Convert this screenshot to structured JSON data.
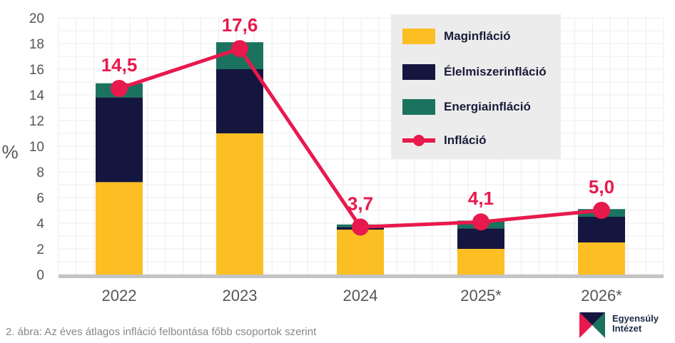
{
  "chart_data": {
    "type": "bar",
    "stacked": true,
    "categories": [
      "2022",
      "2023",
      "2024",
      "2025*",
      "2026*"
    ],
    "series": [
      {
        "name": "Maginfláció",
        "color": "#fbbf24",
        "values": [
          7.2,
          11.0,
          3.5,
          2.0,
          2.5
        ]
      },
      {
        "name": "Élelmiszerinfláció",
        "color": "#14163f",
        "values": [
          6.6,
          5.0,
          0.2,
          1.6,
          2.0
        ]
      },
      {
        "name": "Energiainfláció",
        "color": "#1b735f",
        "values": [
          1.1,
          2.1,
          0.2,
          0.6,
          0.6
        ]
      }
    ],
    "line": {
      "name": "Infláció",
      "color": "#e8194c",
      "values": [
        14.5,
        17.6,
        3.7,
        4.1,
        5.0
      ],
      "labels": [
        "14,5",
        "17,6",
        "3,7",
        "4,1",
        "5,0"
      ]
    },
    "yticks": [
      "0",
      "2",
      "4",
      "6",
      "8",
      "10",
      "12",
      "14",
      "16",
      "18",
      "20"
    ],
    "ylabel": "%",
    "ylim": [
      0,
      20
    ],
    "grid": true,
    "legend_position": "top-right"
  },
  "caption": "2. ábra: Az éves átlagos infláció felbontása főbb csoportok szerint",
  "logo": {
    "line1": "Egyensúly",
    "line2": "Intézet"
  }
}
